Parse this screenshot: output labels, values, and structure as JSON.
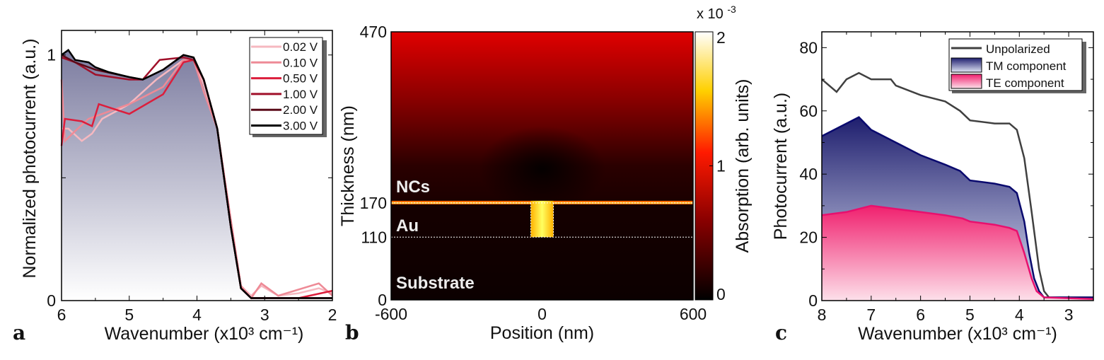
{
  "chart_data": [
    {
      "panel_label": "a",
      "type": "line",
      "xlabel": "Wavenumber (x10³ cm⁻¹)",
      "ylabel": "Normalized photocurrent (a.u.)",
      "xlim": [
        6,
        2
      ],
      "ylim": [
        0,
        1.1
      ],
      "xticks": [
        "6",
        "5",
        "4",
        "3",
        "2"
      ],
      "yticks": [
        "0",
        "1"
      ],
      "fill_under": "3.00 V",
      "fill_colors": [
        "#7c7ca0",
        "#ffffff"
      ],
      "legend_placement": "top-right",
      "series": [
        {
          "name": "0.02 V",
          "color": "#f6b8c0",
          "points": [
            [
              6,
              0.7
            ],
            [
              5.9,
              0.7
            ],
            [
              5.7,
              0.65
            ],
            [
              5.55,
              0.68
            ],
            [
              5.4,
              0.74
            ],
            [
              5.0,
              0.8
            ],
            [
              4.6,
              0.9
            ],
            [
              4.2,
              0.98
            ],
            [
              4.05,
              0.98
            ],
            [
              3.9,
              0.88
            ],
            [
              3.7,
              0.7
            ],
            [
              3.5,
              0.32
            ],
            [
              3.35,
              0.06
            ],
            [
              3.2,
              0.02
            ],
            [
              3.05,
              0.06
            ],
            [
              2.8,
              0.02
            ],
            [
              2.5,
              0.03
            ],
            [
              2.2,
              0.05
            ],
            [
              2,
              0.03
            ]
          ]
        },
        {
          "name": "0.10 V",
          "color": "#ee8a96",
          "points": [
            [
              6,
              0.9
            ],
            [
              5.95,
              0.65
            ],
            [
              5.8,
              0.69
            ],
            [
              5.6,
              0.74
            ],
            [
              5.0,
              0.8
            ],
            [
              4.5,
              0.87
            ],
            [
              4.2,
              0.98
            ],
            [
              4.05,
              0.98
            ],
            [
              3.9,
              0.85
            ],
            [
              3.7,
              0.7
            ],
            [
              3.5,
              0.33
            ],
            [
              3.35,
              0.06
            ],
            [
              3.2,
              0.01
            ],
            [
              3.05,
              0.07
            ],
            [
              2.8,
              0.02
            ],
            [
              2.2,
              0.07
            ],
            [
              2,
              0.02
            ]
          ]
        },
        {
          "name": "0.50 V",
          "color": "#dc1e3c",
          "points": [
            [
              6,
              0.63
            ],
            [
              5.95,
              0.74
            ],
            [
              5.7,
              0.73
            ],
            [
              5.55,
              0.71
            ],
            [
              5.45,
              0.8
            ],
            [
              5.0,
              0.76
            ],
            [
              4.5,
              0.84
            ],
            [
              4.2,
              0.97
            ],
            [
              4.05,
              0.98
            ],
            [
              3.9,
              0.9
            ],
            [
              3.7,
              0.7
            ],
            [
              3.5,
              0.3
            ],
            [
              3.35,
              0.05
            ],
            [
              3.2,
              0.01
            ],
            [
              2.5,
              0.01
            ],
            [
              2,
              0.04
            ]
          ]
        },
        {
          "name": "1.00 V",
          "color": "#a0102a",
          "points": [
            [
              6,
              0.99
            ],
            [
              5.8,
              0.97
            ],
            [
              5.5,
              0.92
            ],
            [
              5.0,
              0.9
            ],
            [
              4.8,
              0.9
            ],
            [
              4.55,
              0.98
            ],
            [
              4.2,
              0.99
            ],
            [
              4.05,
              0.98
            ],
            [
              3.9,
              0.9
            ],
            [
              3.7,
              0.7
            ],
            [
              3.5,
              0.3
            ],
            [
              3.35,
              0.05
            ],
            [
              3.2,
              0.01
            ],
            [
              2,
              0.01
            ]
          ]
        },
        {
          "name": "2.00 V",
          "color": "#5a0a18",
          "points": [
            [
              6,
              1.0
            ],
            [
              5.8,
              0.97
            ],
            [
              5.5,
              0.94
            ],
            [
              5.0,
              0.91
            ],
            [
              4.8,
              0.9
            ],
            [
              4.5,
              0.94
            ],
            [
              4.2,
              1.0
            ],
            [
              4.05,
              0.99
            ],
            [
              3.9,
              0.9
            ],
            [
              3.7,
              0.7
            ],
            [
              3.5,
              0.3
            ],
            [
              3.35,
              0.05
            ],
            [
              3.2,
              0.01
            ],
            [
              2,
              0.01
            ]
          ]
        },
        {
          "name": "3.00 V",
          "color": "#000000",
          "points": [
            [
              6,
              1.0
            ],
            [
              5.9,
              1.02
            ],
            [
              5.8,
              0.98
            ],
            [
              5.6,
              0.97
            ],
            [
              5.5,
              0.95
            ],
            [
              5.3,
              0.93
            ],
            [
              5.0,
              0.91
            ],
            [
              4.8,
              0.9
            ],
            [
              4.5,
              0.94
            ],
            [
              4.2,
              1.0
            ],
            [
              4.05,
              0.99
            ],
            [
              3.9,
              0.9
            ],
            [
              3.7,
              0.7
            ],
            [
              3.5,
              0.3
            ],
            [
              3.35,
              0.05
            ],
            [
              3.2,
              0.01
            ],
            [
              2,
              0.01
            ]
          ]
        }
      ]
    },
    {
      "panel_label": "b",
      "type": "heatmap",
      "xlabel": "Position (nm)",
      "ylabel": "Thickness (nm)",
      "xlim": [
        -600,
        600
      ],
      "ylim": [
        0,
        470
      ],
      "xticks": [
        "-600",
        "0",
        "600"
      ],
      "yticks": [
        "0",
        "110",
        "170",
        "470"
      ],
      "colorbar": {
        "label": "Absorption (arb. units)",
        "multiplier": "x 10",
        "multiplier_exp": "-3",
        "ticks": [
          "0",
          "1",
          "2"
        ],
        "range": [
          0,
          2
        ],
        "colors": [
          "#000000",
          "#8b0000",
          "#ff0000",
          "#ffff00",
          "#ffffff"
        ]
      },
      "regions": [
        "NCs",
        "Au",
        "Substrate"
      ]
    },
    {
      "panel_label": "c",
      "type": "area",
      "xlabel": "Wavenumber (x10³ cm⁻¹)",
      "ylabel": "Photocurrent (a.u.)",
      "xlim": [
        8,
        2.5
      ],
      "ylim": [
        0,
        85
      ],
      "xticks": [
        "8",
        "7",
        "6",
        "5",
        "4",
        "3"
      ],
      "yticks": [
        "0",
        "20",
        "40",
        "60",
        "80"
      ],
      "legend_placement": "top-right",
      "series": [
        {
          "name": "Unpolarized",
          "color": "#404040",
          "fill": false,
          "points": [
            [
              8,
              70
            ],
            [
              7.7,
              66
            ],
            [
              7.5,
              70
            ],
            [
              7.25,
              72
            ],
            [
              7,
              70
            ],
            [
              6.6,
              70
            ],
            [
              6.5,
              68
            ],
            [
              6,
              65
            ],
            [
              5.5,
              63
            ],
            [
              5.2,
              60
            ],
            [
              5.0,
              57
            ],
            [
              4.5,
              56
            ],
            [
              4.2,
              56
            ],
            [
              4.05,
              54
            ],
            [
              3.9,
              45
            ],
            [
              3.75,
              28
            ],
            [
              3.6,
              10
            ],
            [
              3.5,
              3
            ],
            [
              3.4,
              1
            ],
            [
              2.5,
              1
            ]
          ]
        },
        {
          "name": "TM component",
          "color": "#0a0a6e",
          "fill": true,
          "fill_colors": [
            "#1e1e6e",
            "#e0e4f5"
          ],
          "points": [
            [
              8,
              52
            ],
            [
              7.5,
              56
            ],
            [
              7.25,
              58
            ],
            [
              7,
              54
            ],
            [
              6.5,
              50
            ],
            [
              6,
              46
            ],
            [
              5.5,
              43
            ],
            [
              5.2,
              41
            ],
            [
              5.0,
              38
            ],
            [
              4.5,
              37
            ],
            [
              4.2,
              36
            ],
            [
              4.05,
              34
            ],
            [
              3.9,
              25
            ],
            [
              3.8,
              15
            ],
            [
              3.7,
              7
            ],
            [
              3.6,
              3
            ],
            [
              3.5,
              1
            ],
            [
              2.5,
              1
            ]
          ]
        },
        {
          "name": "TE component",
          "color": "#e8106e",
          "fill": true,
          "fill_colors": [
            "#f0206e",
            "#fde0ea"
          ],
          "points": [
            [
              8,
              27
            ],
            [
              7.5,
              28
            ],
            [
              7,
              30
            ],
            [
              6.5,
              29
            ],
            [
              6,
              28
            ],
            [
              5.5,
              27
            ],
            [
              5.15,
              26
            ],
            [
              5.0,
              25
            ],
            [
              4.5,
              24
            ],
            [
              4.2,
              23
            ],
            [
              4.05,
              22
            ],
            [
              3.9,
              15
            ],
            [
              3.75,
              7
            ],
            [
              3.65,
              3
            ],
            [
              3.5,
              1
            ],
            [
              2.5,
              0.5
            ]
          ]
        }
      ]
    }
  ]
}
